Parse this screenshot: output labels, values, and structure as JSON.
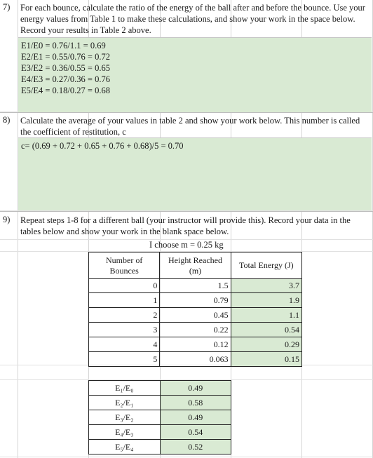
{
  "q7": {
    "number": "7)",
    "text": "For each bounce, calculate the ratio of the energy of the ball after and before the bounce. Use your energy values from Table 1 to make these calculations, and show your work in the space below. Record your results in Table 2 above.",
    "answers": [
      "E1/E0 = 0.76/1.1 = 0.69",
      "E2/E1 = 0.55/0.76 = 0.72",
      "E3/E2 = 0.36/0.55 = 0.65",
      "E4/E3 = 0.27/0.36 = 0.76",
      "E5/E4 = 0.18/0.27 = 0.68"
    ]
  },
  "q8": {
    "number": "8)",
    "text": "Calculate the average of your values in table 2 and show your work below. This number is called the coefficient of restitution, c",
    "answer": "c= (0.69 + 0.72 + 0.65 + 0.76 + 0.68)/5 = 0.70"
  },
  "q9": {
    "number": "9)",
    "text": "Repeat steps 1-8 for a different ball (your instructor will provide this). Record your data in the tables below and show your work in the blank space below.",
    "mass_label": "I choose m = 0.25 kg"
  },
  "table1": {
    "headers": [
      "Number of Bounces",
      "Height Reached (m)",
      "Total Energy (J)"
    ],
    "rows": [
      [
        "0",
        "1.5",
        "3.7"
      ],
      [
        "1",
        "0.79",
        "1.9"
      ],
      [
        "2",
        "0.45",
        "1.1"
      ],
      [
        "3",
        "0.22",
        "0.54"
      ],
      [
        "4",
        "0.12",
        "0.29"
      ],
      [
        "5",
        "0.063",
        "0.15"
      ]
    ]
  },
  "table2": {
    "rows": [
      [
        "E₁/E₀",
        "0.49"
      ],
      [
        "E₂/E₁",
        "0.58"
      ],
      [
        "E₃/E₂",
        "0.49"
      ],
      [
        "E₄/E₃",
        "0.54"
      ],
      [
        "E₅/E₄",
        "0.52"
      ]
    ]
  },
  "colors": {
    "answer_fill": "#d9ead3",
    "grid": "#d4d4d4"
  }
}
